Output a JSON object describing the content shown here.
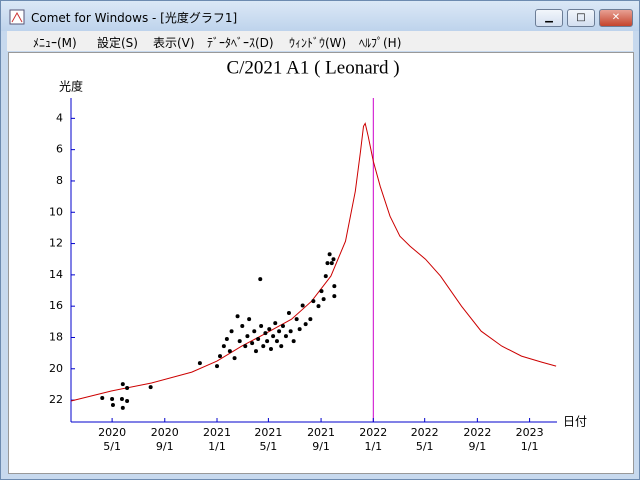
{
  "window": {
    "title": "Comet for Windows - [光度グラフ1]",
    "menu": [
      "ﾒﾆｭｰ(M)",
      "設定(S)",
      "表示(V)",
      "ﾃﾞｰﾀﾍﾞｰｽ(D)",
      "ｳｨﾝﾄﾞｳ(W)",
      "ﾍﾙﾌﾟ(H)"
    ]
  },
  "chart_data": {
    "type": "scatter-line",
    "title": "C/2021 A1 ( Leonard )",
    "y_label": "光度",
    "x_label": "日付",
    "xlim": [
      "2020-01-26",
      "2023-03-06"
    ],
    "xticks": [
      {
        "value": "2020-05-01",
        "label": [
          "2020",
          "5/1"
        ]
      },
      {
        "value": "2020-09-01",
        "label": [
          "2020",
          "9/1"
        ]
      },
      {
        "value": "2021-01-01",
        "label": [
          "2021",
          "1/1"
        ]
      },
      {
        "value": "2021-05-01",
        "label": [
          "2021",
          "5/1"
        ]
      },
      {
        "value": "2021-09-01",
        "label": [
          "2021",
          "9/1"
        ]
      },
      {
        "value": "2022-01-01",
        "label": [
          "2022",
          "1/1"
        ]
      },
      {
        "value": "2022-05-01",
        "label": [
          "2022",
          "5/1"
        ]
      },
      {
        "value": "2022-09-01",
        "label": [
          "2022",
          "9/1"
        ]
      },
      {
        "value": "2023-01-01",
        "label": [
          "2023",
          "1/1"
        ]
      }
    ],
    "ylim": [
      23.4,
      2.7
    ],
    "yticks": [
      4,
      6,
      8,
      10,
      12,
      14,
      16,
      18,
      20,
      22
    ],
    "axis_color": "#0000cc",
    "vline": {
      "x": "2022-01-01",
      "color": "#cc00cc"
    },
    "series": [
      {
        "kind": "line",
        "color": "#cc0000",
        "x": [
          "2020-01-26",
          "2020-04-29",
          "2020-08-01",
          "2020-11-03",
          "2021-01-01",
          "2021-02-28",
          "2021-04-26",
          "2021-06-24",
          "2021-08-10",
          "2021-09-24",
          "2021-10-28",
          "2021-11-20",
          "2021-12-02",
          "2021-12-09",
          "2021-12-13",
          "2021-12-20",
          "2022-01-01",
          "2022-01-17",
          "2022-02-09",
          "2022-03-04",
          "2022-03-28",
          "2022-05-03",
          "2022-06-07",
          "2022-07-26",
          "2022-09-10",
          "2022-10-28",
          "2022-12-13",
          "2023-01-29",
          "2023-03-04"
        ],
        "values": [
          22.06,
          21.42,
          20.91,
          20.21,
          19.51,
          18.55,
          17.72,
          16.83,
          15.68,
          14.08,
          11.85,
          8.66,
          6.11,
          4.51,
          4.32,
          5.15,
          6.74,
          8.34,
          10.25,
          11.53,
          12.17,
          13.0,
          14.08,
          16.0,
          17.6,
          18.55,
          19.19,
          19.57,
          19.83
        ]
      },
      {
        "kind": "dots",
        "color": "#000000",
        "x": [
          "2020-04-08",
          "2020-05-01",
          "2020-05-03",
          "2020-05-24",
          "2020-05-26",
          "2020-06-05",
          "2020-05-26",
          "2020-06-05",
          "2020-07-30",
          "2020-11-22",
          "2021-01-01",
          "2021-01-08",
          "2021-01-17",
          "2021-01-24",
          "2021-01-31",
          "2021-02-04",
          "2021-02-11",
          "2021-02-18",
          "2021-02-23",
          "2021-03-01",
          "2021-03-08",
          "2021-03-13",
          "2021-03-17",
          "2021-03-24",
          "2021-03-29",
          "2021-04-02",
          "2021-04-07",
          "2021-04-12",
          "2021-04-14",
          "2021-04-19",
          "2021-04-24",
          "2021-04-28",
          "2021-05-03",
          "2021-05-07",
          "2021-05-12",
          "2021-05-17",
          "2021-05-21",
          "2021-05-26",
          "2021-05-31",
          "2021-06-04",
          "2021-06-11",
          "2021-06-18",
          "2021-06-22",
          "2021-06-29",
          "2021-07-06",
          "2021-07-13",
          "2021-07-20",
          "2021-07-27",
          "2021-08-07",
          "2021-08-14",
          "2021-08-26",
          "2021-09-02",
          "2021-09-07",
          "2021-09-12",
          "2021-09-16",
          "2021-09-21",
          "2021-09-26",
          "2021-09-30",
          "2021-10-02",
          "2021-10-02"
        ],
        "values": [
          21.87,
          21.93,
          22.31,
          21.93,
          22.5,
          22.06,
          20.98,
          21.23,
          21.17,
          19.64,
          19.83,
          19.19,
          18.55,
          18.1,
          18.87,
          17.6,
          19.32,
          16.64,
          18.23,
          17.27,
          18.55,
          17.91,
          16.83,
          18.36,
          17.6,
          18.87,
          18.1,
          14.27,
          17.27,
          18.55,
          17.72,
          18.23,
          17.47,
          18.74,
          17.91,
          17.08,
          18.23,
          17.6,
          18.55,
          17.27,
          17.91,
          16.44,
          17.6,
          18.23,
          16.83,
          17.47,
          15.96,
          17.15,
          16.83,
          15.68,
          16.0,
          15.04,
          15.55,
          14.08,
          13.25,
          12.68,
          13.25,
          13.0,
          14.72,
          15.36
        ]
      }
    ]
  }
}
